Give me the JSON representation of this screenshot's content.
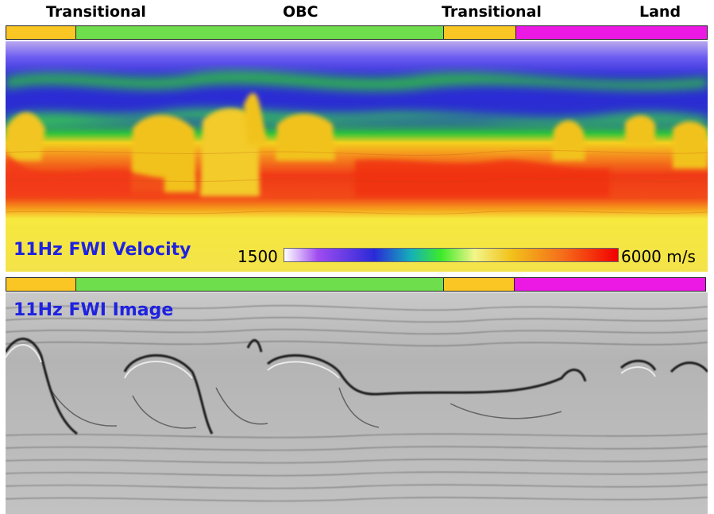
{
  "zones": {
    "transitional_left": "Transitional",
    "obc": "OBC",
    "transitional_right": "Transitional",
    "land": "Land"
  },
  "colors": {
    "transitional": "#f9c623",
    "obc": "#6ede4c",
    "land": "#ec19e5",
    "title": "#1f22e0"
  },
  "velocity_panel": {
    "title": "11Hz FWI Velocity",
    "colorbar_min": "1500",
    "colorbar_max": "6000 m/s"
  },
  "image_panel": {
    "title": "11Hz FWI Image"
  }
}
